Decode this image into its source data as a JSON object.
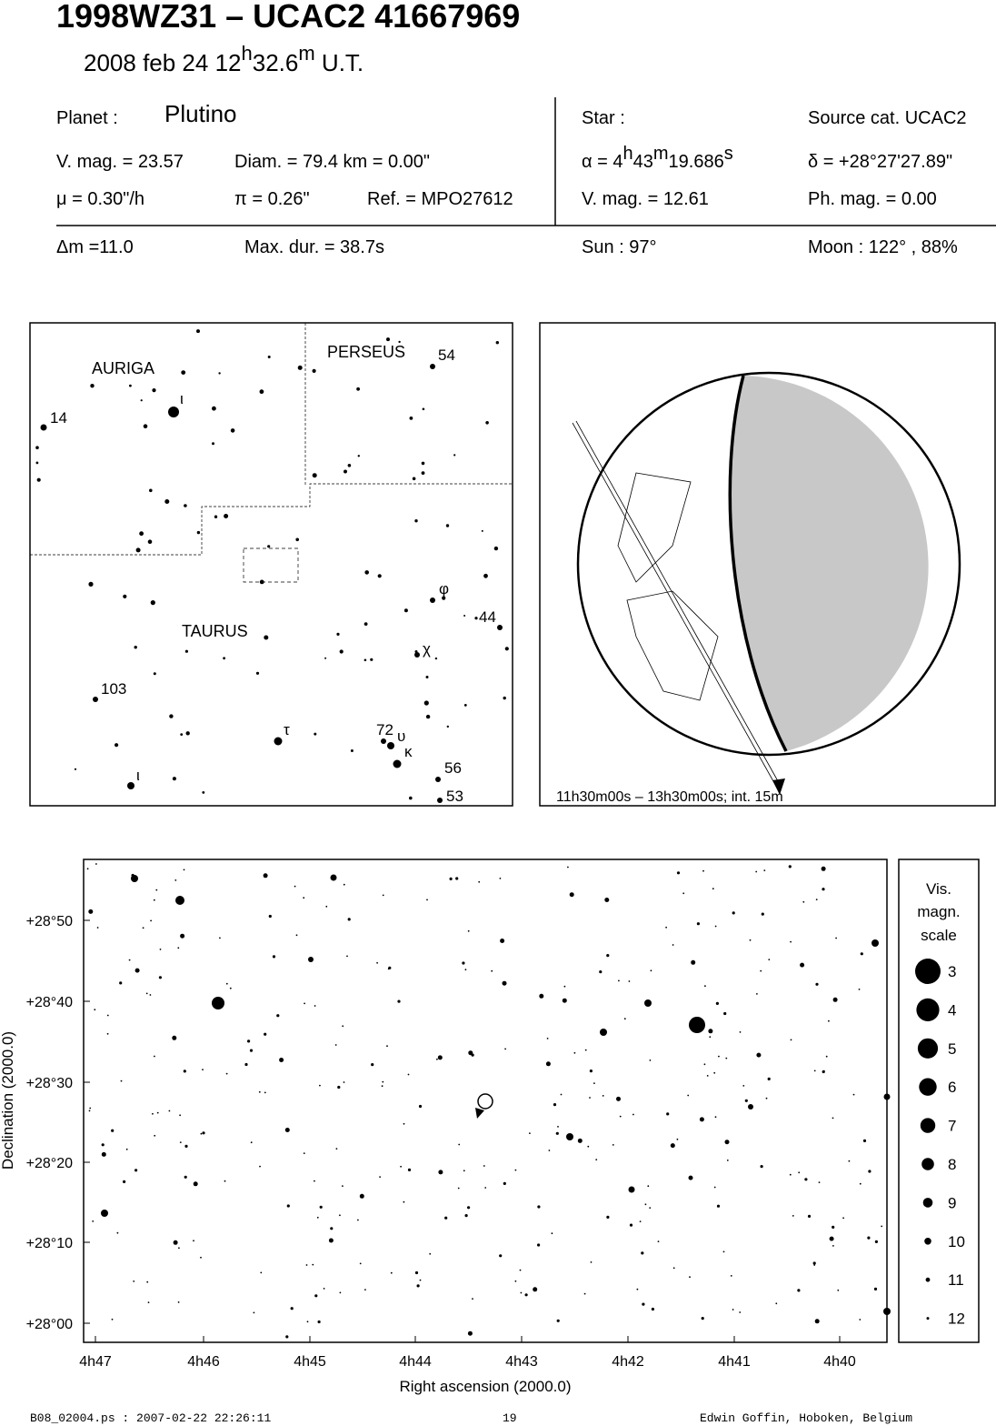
{
  "header": {
    "title": "1998WZ31  –  UCAC2 41667969",
    "date": {
      "day": "2008 feb 24  12",
      "sup_h": "h",
      "minutes": "32.6",
      "sup_m": "m",
      "suffix": " U.T."
    }
  },
  "info": {
    "planet_label": "Planet :",
    "planet": "Plutino",
    "vmag": "V. mag. = 23.57",
    "diam": "Diam. = 79.4 km = 0.00\"",
    "mu": "μ =  0.30\"/h",
    "pi": "π =  0.26\"",
    "ref": "Ref. = MPO27612",
    "star_label": "Star :",
    "source": "Source cat.  UCAC2",
    "alpha": {
      "prefix": "α =  4",
      "sup_h": "h",
      "min": "43",
      "sup_m": "m",
      "sec": "19.686",
      "sup_s": "s"
    },
    "delta": "δ = +28°27'27.89\"",
    "star_vmag": "V. mag. = 12.61",
    "phmag": "Ph. mag. =  0.00",
    "dm": "Δm =11.0",
    "maxdur": "Max. dur. = 38.7s",
    "sun": "Sun :  97°",
    "moon": "Moon : 122° , 88%"
  },
  "finder": {
    "constellations": [
      "AURIGA",
      "PERSEUS",
      "TAURUS"
    ],
    "star_labels": [
      "54",
      "14",
      "ι",
      "φ",
      "44",
      "χ",
      "103",
      "τ",
      "72",
      "υ",
      "κ",
      "56",
      "53",
      "ι"
    ]
  },
  "globe": {
    "caption": "11h30m00s – 13h30m00s; int. 15m"
  },
  "field": {
    "yticks": [
      "+28°50",
      "+28°40",
      "+28°30",
      "+28°20",
      "+28°10",
      "+28°00"
    ],
    "xticks": [
      "4h47",
      "4h46",
      "4h45",
      "4h44",
      "4h43",
      "4h42",
      "4h41",
      "4h40"
    ],
    "ylabel": "Declination (2000.0)",
    "xlabel": "Right ascension (2000.0)"
  },
  "scale": {
    "title": [
      "Vis.",
      "magn.",
      "scale"
    ],
    "mags": [
      "3",
      "4",
      "5",
      "6",
      "7",
      "8",
      "9",
      "10",
      "11",
      "12"
    ]
  },
  "footer": {
    "file": "B08_02004.ps : 2007-02-22 22:26:11",
    "page": "19",
    "author": "Edwin Goffin, Hoboken, Belgium"
  }
}
